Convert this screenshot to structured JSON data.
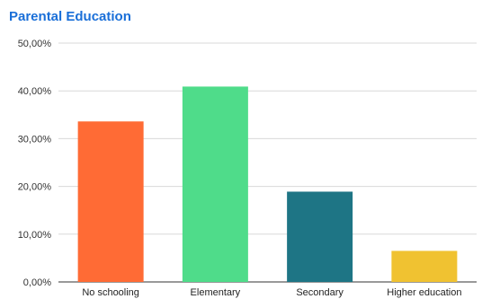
{
  "chart_data": {
    "type": "bar",
    "title": "Parental Education",
    "categories": [
      "No schooling",
      "Elementary",
      "Secondary",
      "Higher education"
    ],
    "values": [
      33.6,
      40.9,
      18.9,
      6.5
    ],
    "ylim": [
      0,
      50
    ],
    "yticks": [
      0,
      10,
      20,
      30,
      40,
      50
    ],
    "ytick_labels": [
      "0,00%",
      "10,00%",
      "20,00%",
      "30,00%",
      "40,00%",
      "50,00%"
    ],
    "xlabel": "",
    "ylabel": "",
    "grid": true,
    "legend": "none",
    "colors": [
      "#ff6b35",
      "#4fdc8a",
      "#1e7585",
      "#f0c231"
    ],
    "title_color": "#1a6fd8",
    "grid_color": "#d9d9d9"
  }
}
